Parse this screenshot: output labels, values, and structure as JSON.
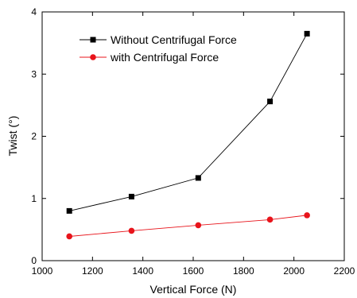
{
  "chart_data": {
    "type": "line",
    "xlabel": "Vertical Force (N)",
    "ylabel": "Twist (°)",
    "xlim": [
      1000,
      2200
    ],
    "ylim": [
      0,
      4
    ],
    "xticks": [
      1000,
      1200,
      1400,
      1600,
      1800,
      2000,
      2200
    ],
    "yticks": [
      0,
      1,
      2,
      3,
      4
    ],
    "legend_position": "top-left",
    "grid": false,
    "series": [
      {
        "name": "Without Centrifugal Force",
        "color": "#000000",
        "marker": "square",
        "x": [
          1108,
          1355,
          1620,
          1905,
          2052
        ],
        "y": [
          0.8,
          1.03,
          1.33,
          2.56,
          3.65
        ]
      },
      {
        "name": "with Centrifugal Force",
        "color": "#e8141b",
        "marker": "circle",
        "x": [
          1108,
          1355,
          1620,
          1905,
          2052
        ],
        "y": [
          0.39,
          0.48,
          0.57,
          0.66,
          0.73
        ]
      }
    ]
  }
}
